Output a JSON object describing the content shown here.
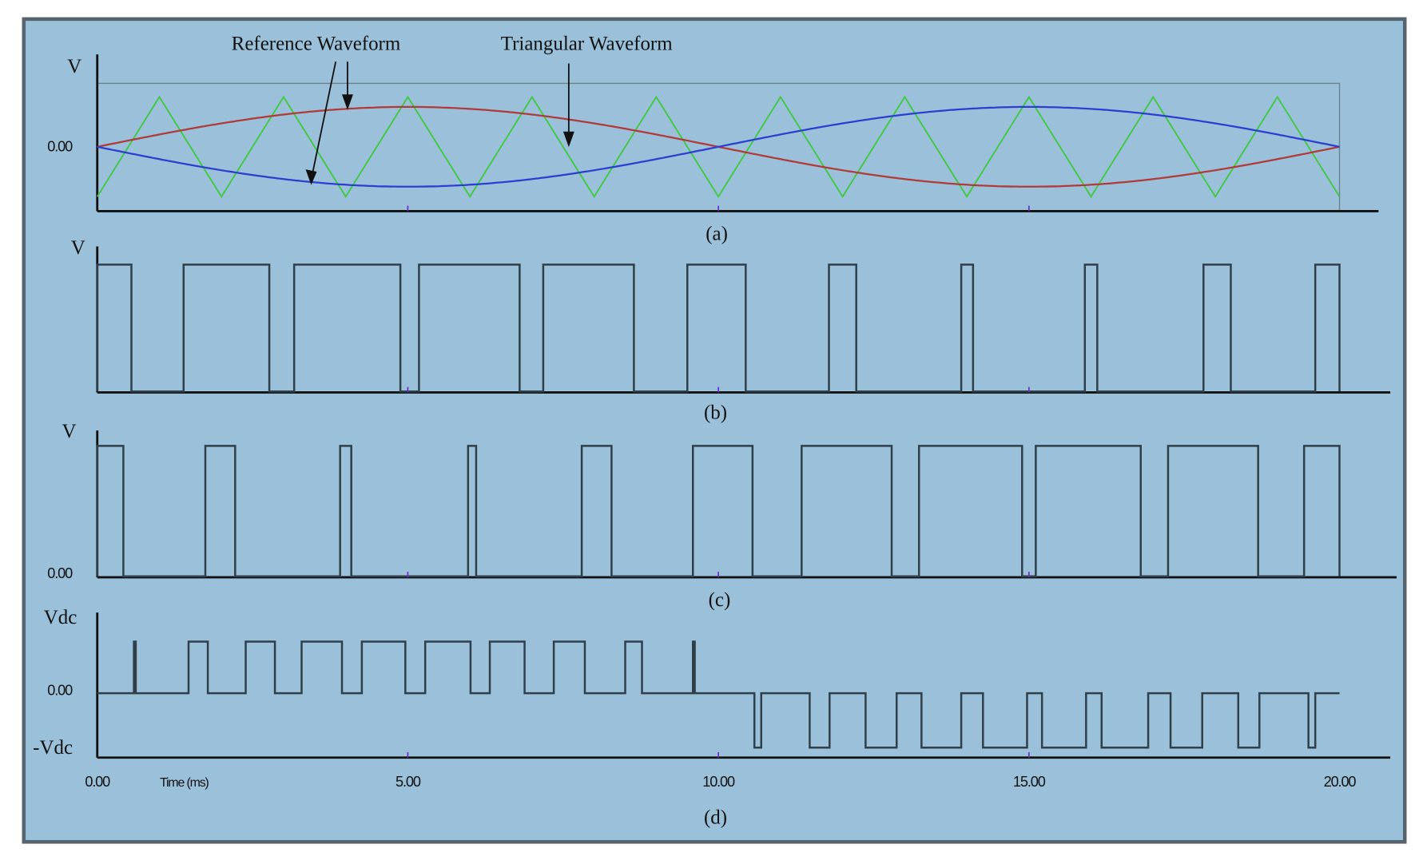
{
  "chart_data": [
    {
      "type": "line",
      "panel_label": "(a)",
      "y_tick_labels": [
        "V",
        "0.00"
      ],
      "xlim": [
        0,
        20
      ],
      "annotations": [
        "Reference Waveform",
        "Triangular Waveform"
      ],
      "series": [
        {
          "kind": "sine",
          "color": "#b03a3a",
          "frequency_hz": 50,
          "amplitude": 0.8,
          "phase": "positive"
        },
        {
          "kind": "sine",
          "color": "#2a3fd0",
          "frequency_hz": 50,
          "amplitude": 0.8,
          "phase": "inverted"
        },
        {
          "kind": "triangle",
          "color": "#3dc83d",
          "frequency_hz": 500,
          "amplitude": 1.0,
          "starts_at": "minimum"
        }
      ]
    },
    {
      "type": "line",
      "panel_label": "(b)",
      "y_tick_labels": [
        "V"
      ],
      "xlim": [
        0,
        20
      ],
      "levels": {
        "high": 1,
        "low": 0
      },
      "high_intervals_ms": [
        [
          0,
          0.55
        ],
        [
          1.39,
          2.77
        ],
        [
          3.17,
          4.88
        ],
        [
          5.18,
          6.8
        ],
        [
          7.18,
          8.64
        ],
        [
          9.5,
          10.44
        ],
        [
          11.78,
          12.22
        ],
        [
          13.91,
          14.1
        ],
        [
          15.9,
          16.1
        ],
        [
          17.81,
          18.25
        ],
        [
          19.61,
          20.0
        ]
      ]
    },
    {
      "type": "line",
      "panel_label": "(c)",
      "y_tick_labels": [
        "V",
        "0.00"
      ],
      "xlim": [
        0,
        20
      ],
      "levels": {
        "high": 1,
        "low": 0
      },
      "high_intervals_ms": [
        [
          0,
          0.42
        ],
        [
          1.74,
          2.22
        ],
        [
          3.91,
          4.09
        ],
        [
          5.97,
          6.1
        ],
        [
          7.8,
          8.28
        ],
        [
          9.59,
          10.55
        ],
        [
          11.34,
          12.79
        ],
        [
          13.23,
          14.89
        ],
        [
          15.11,
          16.8
        ],
        [
          17.24,
          18.69
        ],
        [
          19.43,
          20.0
        ]
      ]
    },
    {
      "type": "line",
      "panel_label": "(d)",
      "y_tick_labels": [
        "Vdc",
        "0.00",
        "-Vdc"
      ],
      "xlim": [
        0,
        20
      ],
      "x_tick_labels": [
        "0.00",
        "5.00",
        "10.00",
        "15.00",
        "20.00"
      ],
      "x_ticks": [
        0,
        5,
        10,
        15,
        20
      ],
      "xlabel": "Time (ms)",
      "levels": {
        "positive": 1,
        "zero": 0,
        "negative": -1
      },
      "positive_pulses_ms": [
        [
          0.59,
          0.62
        ],
        [
          1.47,
          1.78
        ],
        [
          2.39,
          2.86
        ],
        [
          3.29,
          3.94
        ],
        [
          4.26,
          4.96
        ],
        [
          5.28,
          6.01
        ],
        [
          6.32,
          6.88
        ],
        [
          7.35,
          7.85
        ],
        [
          8.5,
          8.77
        ],
        [
          9.59,
          9.62
        ]
      ],
      "negative_pulses_ms": [
        [
          10.58,
          10.69
        ],
        [
          11.47,
          11.79
        ],
        [
          12.37,
          12.87
        ],
        [
          13.27,
          13.91
        ],
        [
          14.26,
          14.97
        ],
        [
          15.21,
          15.92
        ],
        [
          16.17,
          16.92
        ],
        [
          17.28,
          17.79
        ],
        [
          18.37,
          18.71
        ],
        [
          19.5,
          19.61
        ]
      ]
    }
  ],
  "colors": {
    "background": "#9bc1da",
    "frame": "#55646e",
    "pulse": "#2f3f4a"
  }
}
